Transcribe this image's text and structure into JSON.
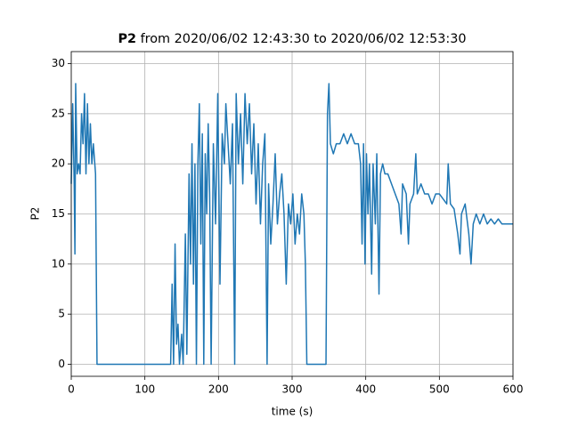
{
  "chart_data": {
    "type": "line",
    "title_bold": "P2",
    "title": "from 2020/06/02 12:43:30 to 2020/06/02 12:53:30",
    "x_label": "time (s)",
    "y_label": "P2",
    "x": [
      0,
      2,
      4,
      5,
      6,
      8,
      10,
      12,
      14,
      16,
      18,
      20,
      22,
      24,
      26,
      28,
      30,
      33,
      35,
      60,
      90,
      120,
      135,
      137,
      139,
      141,
      143,
      145,
      147,
      150,
      152,
      155,
      157,
      160,
      162,
      164,
      166,
      168,
      170,
      172,
      174,
      176,
      178,
      180,
      182,
      184,
      186,
      188,
      190,
      193,
      196,
      199,
      202,
      205,
      208,
      210,
      213,
      216,
      219,
      222,
      224,
      227,
      230,
      233,
      236,
      239,
      242,
      245,
      248,
      251,
      254,
      257,
      260,
      263,
      266,
      268,
      271,
      274,
      277,
      280,
      283,
      286,
      289,
      292,
      295,
      298,
      301,
      304,
      307,
      310,
      313,
      316,
      318,
      320,
      330,
      340,
      346,
      348,
      350,
      352,
      356,
      360,
      365,
      370,
      375,
      380,
      385,
      390,
      393,
      395,
      397,
      399,
      401,
      403,
      405,
      408,
      410,
      413,
      415,
      418,
      420,
      423,
      426,
      430,
      435,
      440,
      445,
      448,
      450,
      455,
      458,
      460,
      465,
      468,
      470,
      475,
      480,
      485,
      490,
      495,
      500,
      505,
      510,
      512,
      515,
      520,
      525,
      528,
      530,
      535,
      540,
      543,
      546,
      550,
      555,
      560,
      565,
      570,
      575,
      580,
      585,
      590,
      595,
      600
    ],
    "series": [
      {
        "name": "P2",
        "color": "#1f77b4",
        "values": [
          18,
          26,
          18,
          11,
          28,
          19,
          20,
          19,
          25,
          22,
          27,
          19,
          26,
          20,
          24,
          20,
          22,
          19,
          0,
          0,
          0,
          0,
          0,
          8,
          0,
          12,
          2,
          4,
          0,
          3,
          0,
          13,
          1,
          19,
          10,
          22,
          8,
          20,
          0,
          20,
          26,
          12,
          23,
          0,
          21,
          15,
          24,
          17,
          0,
          22,
          14,
          27,
          8,
          23,
          20,
          26,
          22,
          18,
          24,
          0,
          27,
          20,
          25,
          18,
          27,
          22,
          26,
          19,
          24,
          16,
          22,
          14,
          20,
          23,
          0,
          18,
          12,
          16,
          21,
          14,
          17,
          19,
          15,
          8,
          16,
          14,
          17,
          12,
          15,
          13,
          17,
          15,
          10,
          0,
          0,
          0,
          0,
          25,
          28,
          22,
          21,
          22,
          22,
          23,
          22,
          23,
          22,
          22,
          20,
          12,
          22,
          10,
          21,
          15,
          20,
          9,
          20,
          14,
          21,
          7,
          19,
          20,
          19,
          19,
          18,
          17,
          16,
          13,
          18,
          17,
          12,
          16,
          17,
          21,
          17,
          18,
          17,
          17,
          16,
          17,
          17,
          16.5,
          16,
          20,
          16,
          15.5,
          13,
          11,
          15,
          16,
          13,
          10,
          14,
          15,
          14,
          15,
          14,
          14.5,
          14,
          14.5,
          14,
          14,
          14,
          14
        ]
      }
    ],
    "xlim": [
      0,
      600
    ],
    "xticks": [
      0,
      100,
      200,
      300,
      400,
      500,
      600
    ],
    "ylim": [
      -1.2,
      31.2
    ],
    "yticks": [
      0,
      5,
      10,
      15,
      20,
      25,
      30
    ],
    "grid": true
  }
}
